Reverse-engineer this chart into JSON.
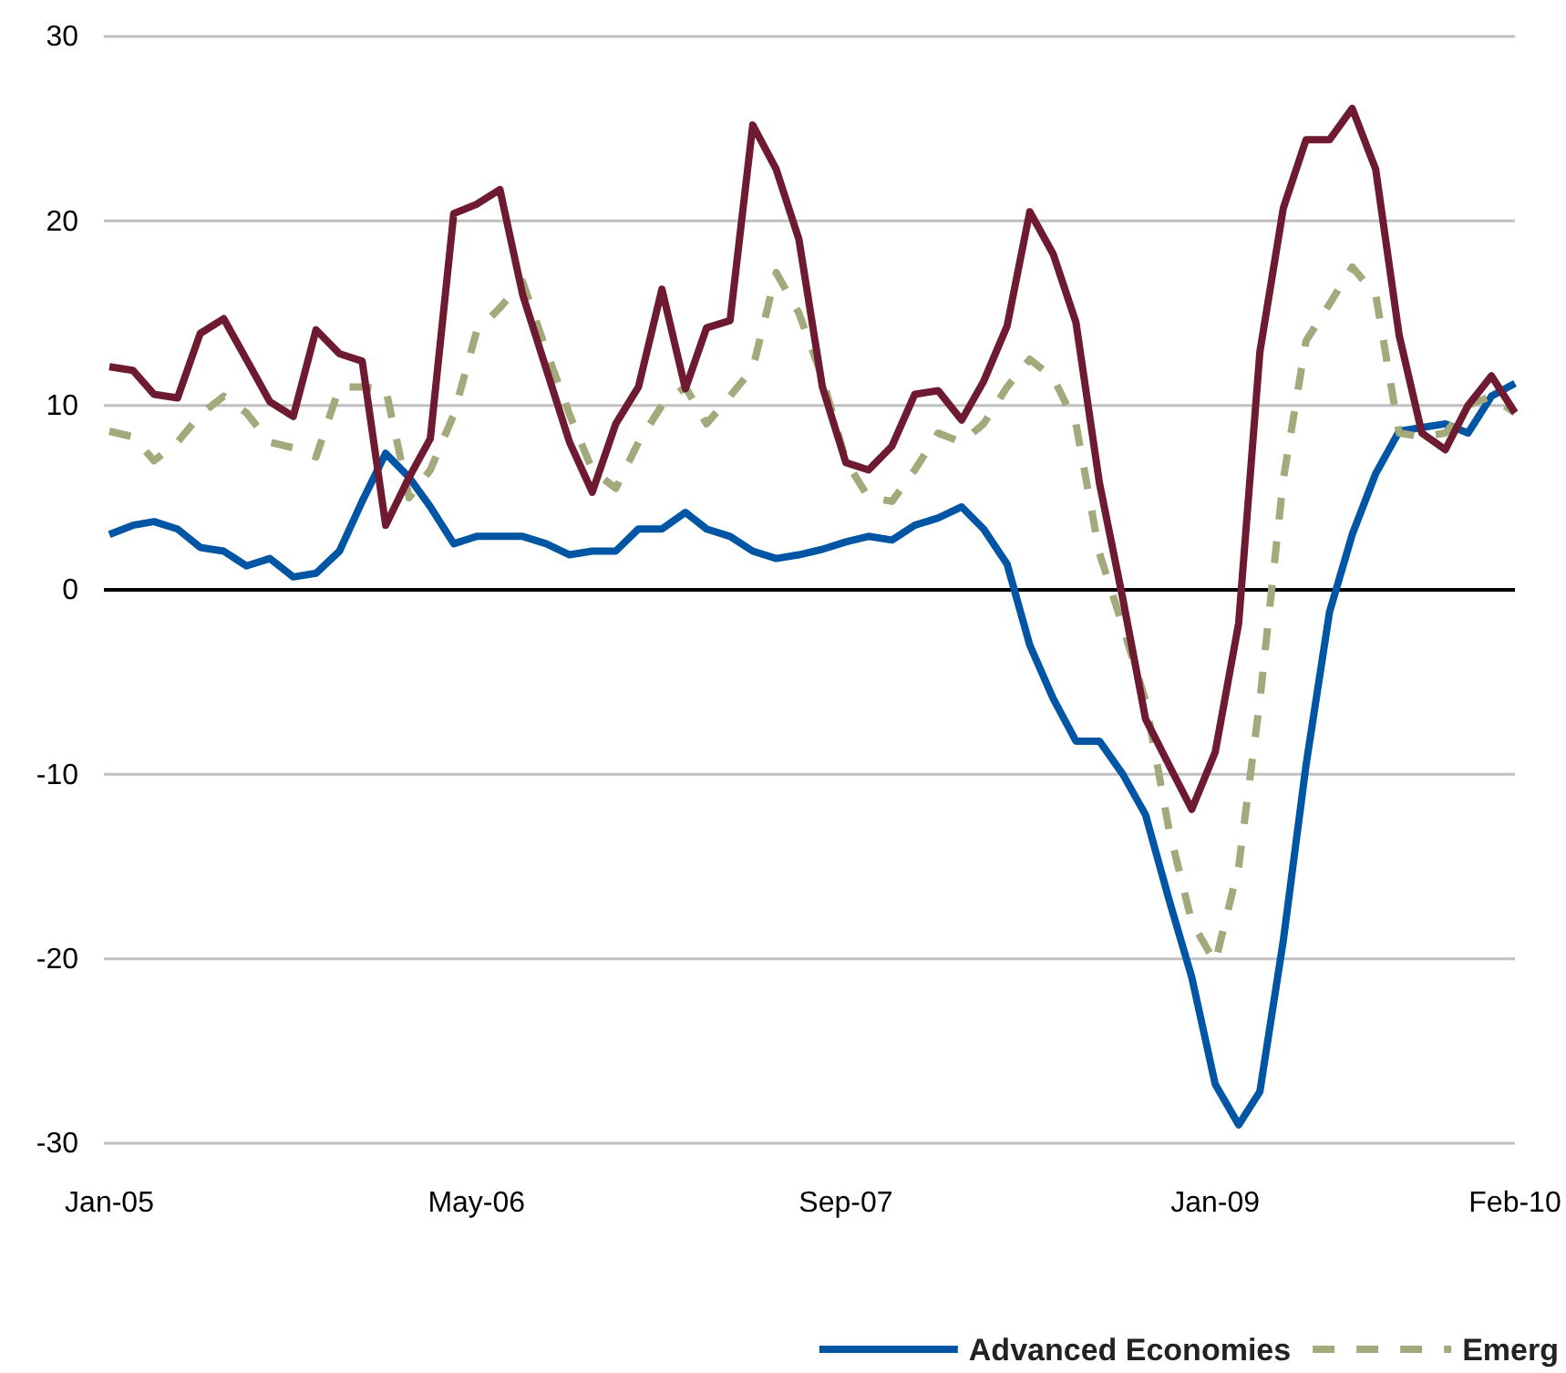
{
  "chart_data": {
    "type": "line",
    "x": [
      "2005-01",
      "2005-02",
      "2005-03",
      "2005-04",
      "2005-05",
      "2005-06",
      "2005-07",
      "2005-08",
      "2005-09",
      "2005-10",
      "2005-11",
      "2005-12",
      "2006-01",
      "2006-02",
      "2006-03",
      "2006-04",
      "2006-05",
      "2006-06",
      "2006-07",
      "2006-08",
      "2006-09",
      "2006-10",
      "2006-11",
      "2006-12",
      "2007-01",
      "2007-02",
      "2007-03",
      "2007-04",
      "2007-05",
      "2007-06",
      "2007-07",
      "2007-08",
      "2007-09",
      "2007-10",
      "2007-11",
      "2007-12",
      "2008-01",
      "2008-02",
      "2008-03",
      "2008-04",
      "2008-05",
      "2008-06",
      "2008-07",
      "2008-08",
      "2008-09",
      "2008-10",
      "2008-11",
      "2008-12",
      "2009-01",
      "2009-02",
      "2009-03",
      "2009-04",
      "2009-05",
      "2009-06",
      "2009-07",
      "2009-08",
      "2009-09",
      "2009-10",
      "2009-11",
      "2009-12",
      "2010-01",
      "2010-02"
    ],
    "series": [
      {
        "name": "Advanced Economies",
        "color": "#0055a5",
        "line_style": "solid",
        "values": [
          3.0,
          3.5,
          3.7,
          3.3,
          2.3,
          2.1,
          1.3,
          1.7,
          0.7,
          0.9,
          2.1,
          4.8,
          7.4,
          6.1,
          4.5,
          2.5,
          2.9,
          2.9,
          2.9,
          2.5,
          1.9,
          2.1,
          2.1,
          3.3,
          3.3,
          4.2,
          3.3,
          2.9,
          2.1,
          1.7,
          1.9,
          2.2,
          2.6,
          2.9,
          2.7,
          3.5,
          3.9,
          4.5,
          3.3,
          1.4,
          -3.0,
          -5.9,
          -8.2,
          -8.2,
          -10.0,
          -12.2,
          -16.8,
          -21.0,
          -26.8,
          -29.0,
          -27.2,
          -19.0,
          -9.5,
          -1.2,
          3.0,
          6.3,
          8.6,
          8.8,
          9.0,
          8.5,
          10.5,
          11.2
        ]
      },
      {
        "name": "Emerg",
        "color": "#a3a97a",
        "line_style": "dashed",
        "values": [
          8.6,
          8.3,
          7.0,
          8.0,
          9.5,
          10.5,
          9.6,
          8.0,
          7.7,
          7.2,
          11.0,
          11.0,
          10.9,
          5.0,
          6.5,
          9.5,
          14.0,
          15.3,
          16.7,
          13.0,
          9.5,
          6.5,
          5.5,
          8.0,
          10.0,
          11.0,
          9.0,
          10.5,
          12.0,
          17.2,
          15.0,
          11.5,
          7.0,
          5.0,
          4.8,
          6.5,
          8.5,
          8.0,
          9.0,
          11.0,
          12.5,
          11.5,
          9.0,
          2.0,
          -2.0,
          -6.0,
          -13.0,
          -18.0,
          -20.2,
          -15.0,
          -6.0,
          6.0,
          13.5,
          15.5,
          17.5,
          16.0,
          8.5,
          8.3,
          8.5,
          10.0,
          10.5,
          9.6
        ]
      },
      {
        "color": "#6e1a30",
        "line_style": "solid",
        "values": [
          12.1,
          11.9,
          10.6,
          10.4,
          13.9,
          14.7,
          12.5,
          10.2,
          9.4,
          14.1,
          12.8,
          12.4,
          3.5,
          6.1,
          8.2,
          20.4,
          20.9,
          21.7,
          16.0,
          12.0,
          8.0,
          5.3,
          9.0,
          11.0,
          16.3,
          10.9,
          14.2,
          14.6,
          25.2,
          22.8,
          19.0,
          11.0,
          6.9,
          6.5,
          7.8,
          10.6,
          10.8,
          9.2,
          11.3,
          14.3,
          20.5,
          18.2,
          14.5,
          5.8,
          -0.5,
          -7.0,
          -9.5,
          -11.9,
          -8.8,
          -1.8,
          12.9,
          20.7,
          24.4,
          24.4,
          26.1,
          22.8,
          13.8,
          8.5,
          7.6,
          10.0,
          11.6,
          9.6
        ]
      }
    ],
    "xlim": [
      "2005-01",
      "2010-02"
    ],
    "xticks": [
      {
        "value": "2005-01",
        "label": "Jan-05"
      },
      {
        "value": "2006-05",
        "label": "May-06"
      },
      {
        "value": "2007-09",
        "label": "Sep-07"
      },
      {
        "value": "2009-01",
        "label": "Jan-09"
      },
      {
        "value": "2010-02",
        "label": "Feb-10"
      }
    ],
    "ylim": [
      -30,
      30
    ],
    "yticks": [
      -30,
      -20,
      -10,
      0,
      10,
      20,
      30
    ],
    "grid": "y",
    "legend": "bottom",
    "marker": "none"
  }
}
